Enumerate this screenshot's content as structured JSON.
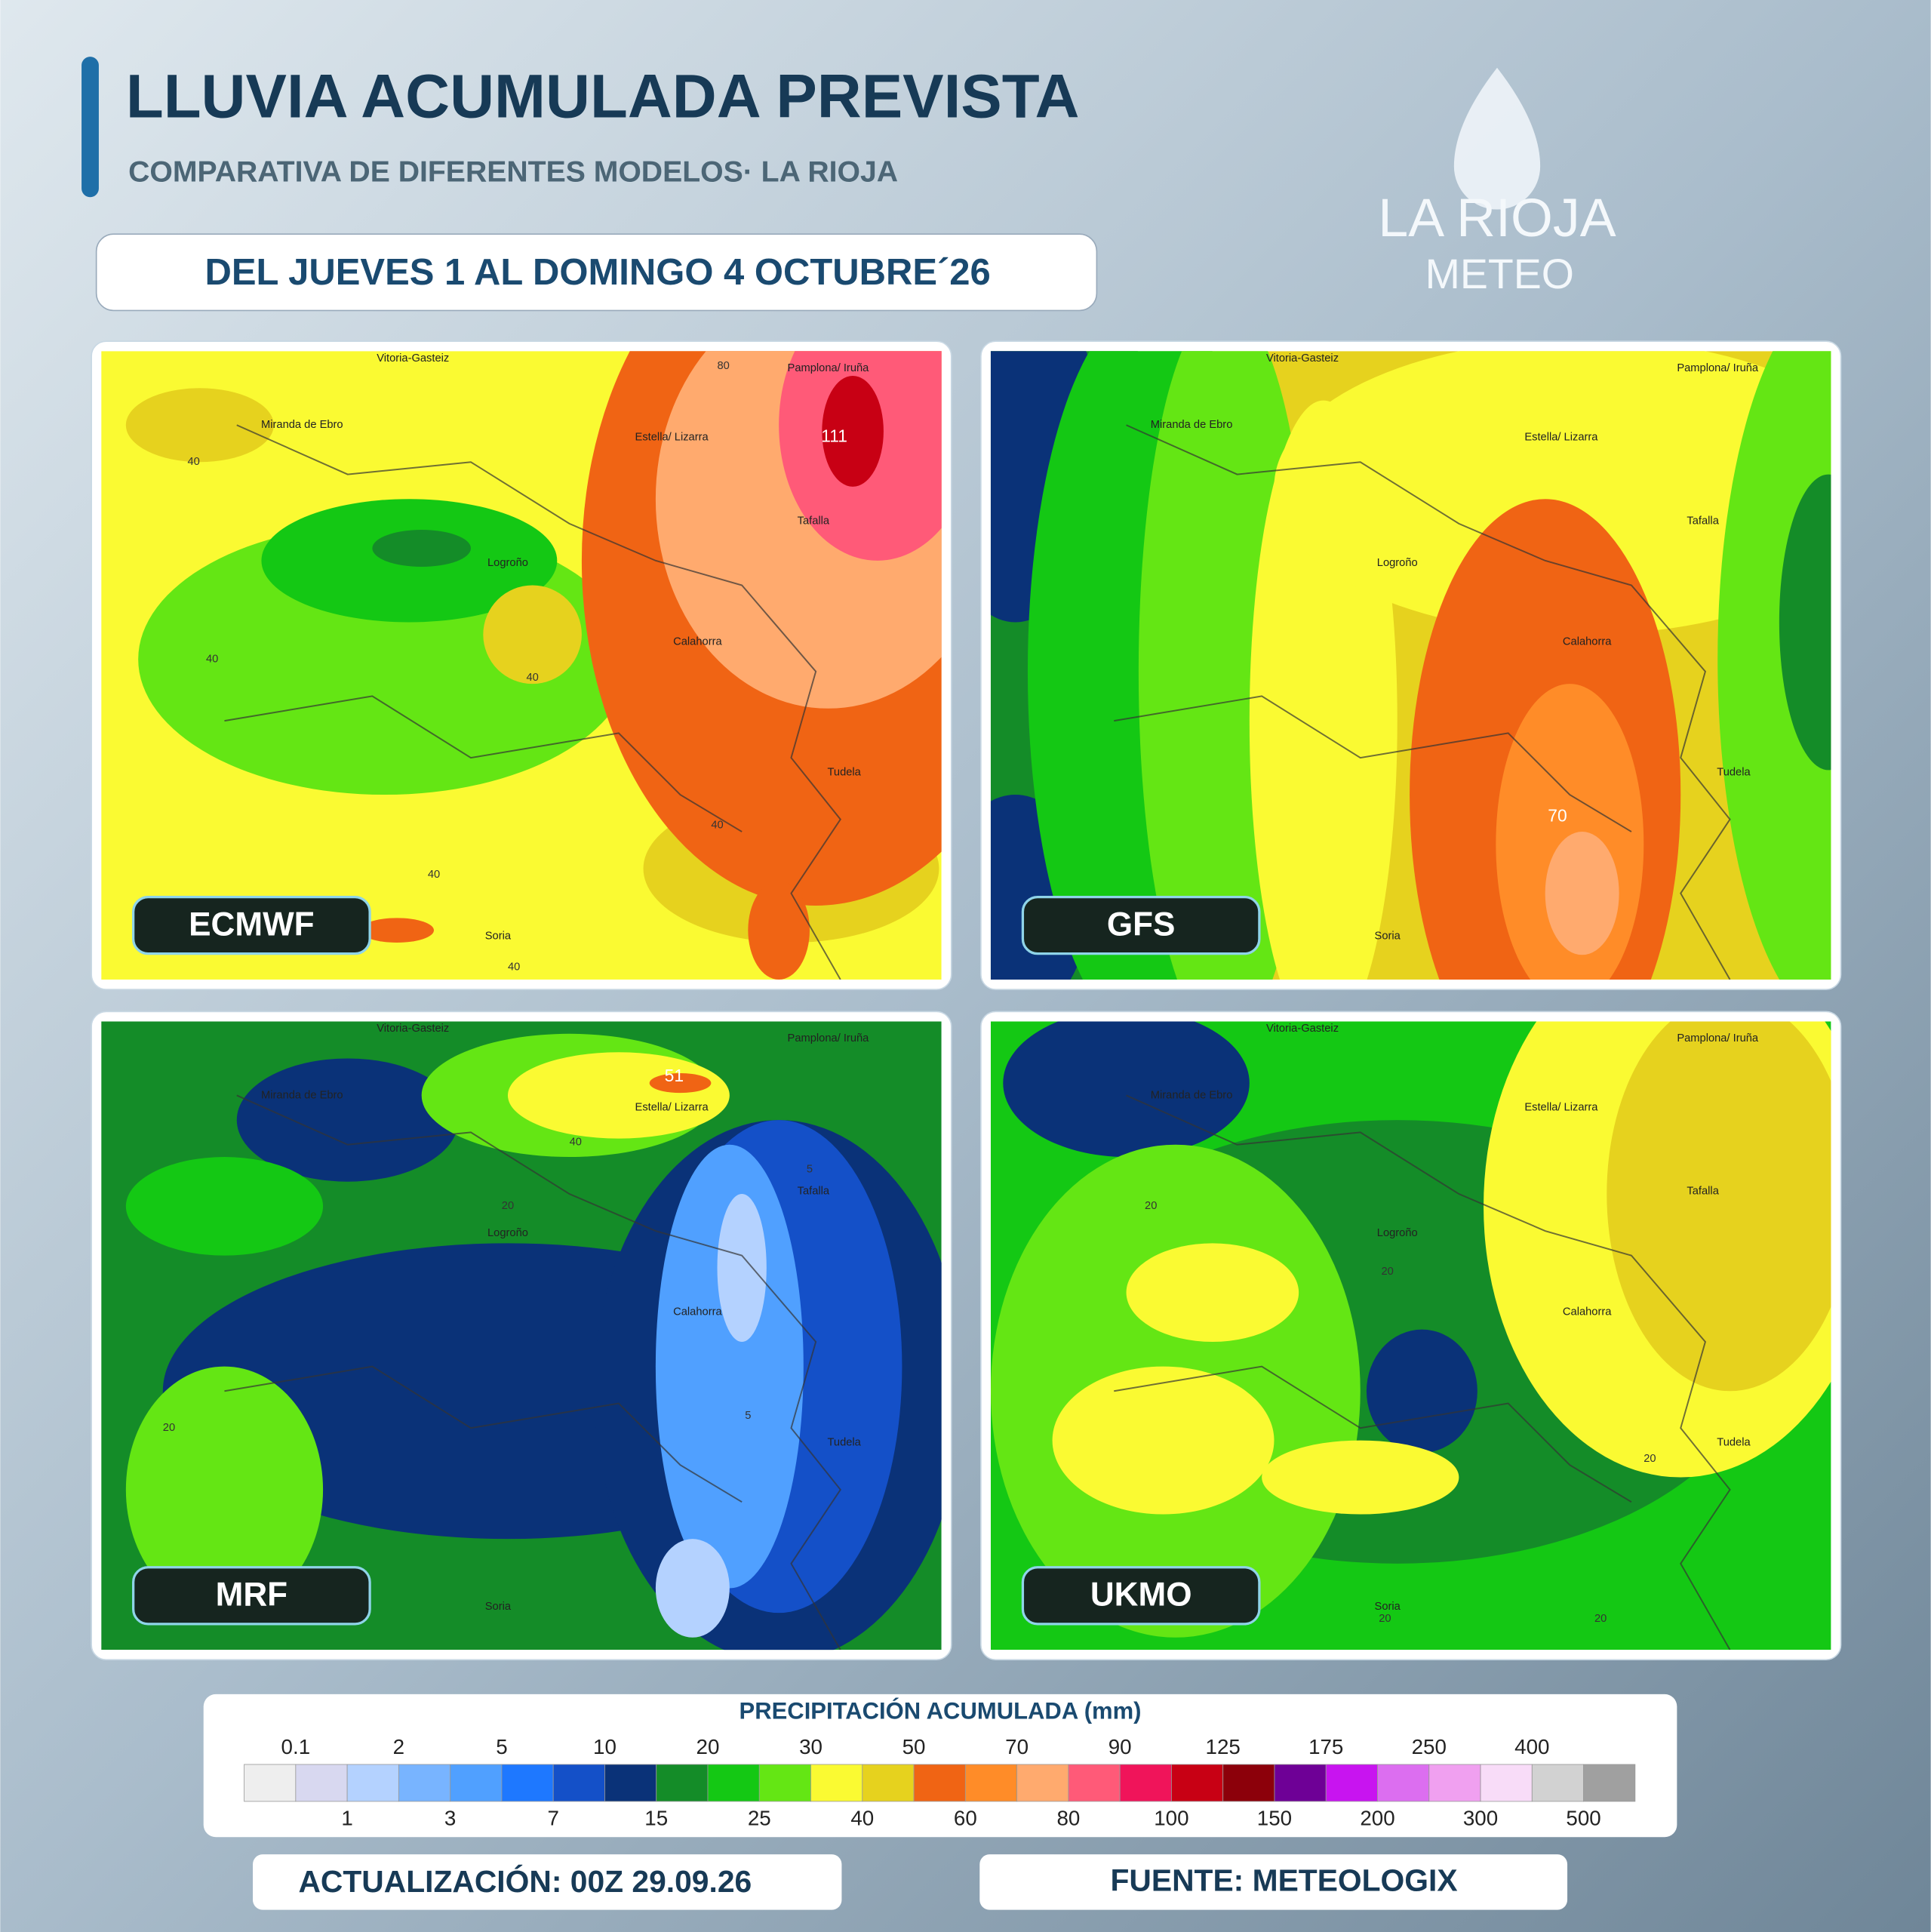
{
  "header": {
    "title": "LLUVIA ACUMULADA PREVISTA",
    "subtitle": "COMPARATIVA DE DIFERENTES MODELOS· LA RIOJA",
    "date_range": "DEL JUEVES 1 AL DOMINGO 4 OCTUBRE´26"
  },
  "logo": {
    "name": "LA RIOJA",
    "tagline": "METEO"
  },
  "places": [
    "Vitoria-Gasteiz",
    "Miranda de Ebro",
    "Estella/ Lizarra",
    "Pamplona/ Iruña",
    "Tafalla",
    "Logroño",
    "Calahorra",
    "Tudela",
    "Soria"
  ],
  "maps": [
    {
      "model": "ECMWF",
      "contour_labels": [
        111,
        80,
        40,
        40,
        40,
        40,
        40,
        40
      ]
    },
    {
      "model": "GFS",
      "contour_labels": [
        70
      ]
    },
    {
      "model": "MRF",
      "contour_labels": [
        51,
        40,
        20,
        20,
        5,
        5
      ]
    },
    {
      "model": "UKMO",
      "contour_labels": [
        20,
        20,
        20,
        20,
        20
      ]
    }
  ],
  "legend": {
    "title": "PRECIPITACIÓN ACUMULADA (mm)",
    "ticks": [
      0.1,
      1,
      2,
      3,
      5,
      7,
      10,
      15,
      20,
      25,
      30,
      40,
      50,
      60,
      70,
      80,
      90,
      100,
      125,
      150,
      175,
      200,
      250,
      300,
      400,
      500
    ],
    "colors": [
      "#eeeeee",
      "#d8d8f0",
      "#b4d2ff",
      "#78b4ff",
      "#50a0ff",
      "#1e78ff",
      "#1450c8",
      "#0a3278",
      "#148c28",
      "#14c814",
      "#64e614",
      "#fafa32",
      "#e6d21e",
      "#f06414",
      "#ff8c28",
      "#ffaa6e",
      "#ff5a78",
      "#f0145a",
      "#c80014",
      "#8c000a",
      "#6e0096",
      "#c814f0",
      "#dc6ef0",
      "#f0a0f0",
      "#f8dcf8",
      "#d2d2d2",
      "#a0a0a0"
    ]
  },
  "footer": {
    "update": "ACTUALIZACIÓN: 00Z 29.09.26",
    "source": "FUENTE: METEOLOGIX"
  }
}
